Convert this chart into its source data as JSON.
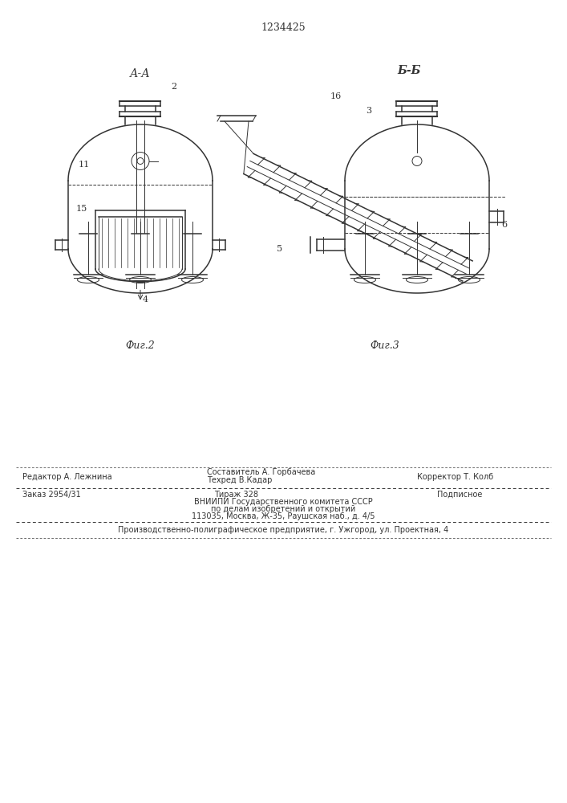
{
  "patent_number": "1234425",
  "fig2_label": "А-А",
  "fig3_label": "Б-Б",
  "fig2_caption": "Фиг.2",
  "fig3_caption": "Фиг.3",
  "line_color": "#333333",
  "footer_editor": "Редактор А. Лежнина",
  "footer_comp": "Составитель А. Горбачева",
  "footer_tech": "Техред В.Кадар",
  "footer_corr": "Корректор Т. Колб",
  "footer_order": "Заказ 2954/31",
  "footer_circ": "Тираж 328",
  "footer_sign": "Подписное",
  "footer_vnipi1": "ВНИИПИ Государственного комитета СССР",
  "footer_vnipi2": "по делам изобретений и открытий",
  "footer_vnipi3": "113035, Москва, Ж-35, Раушская наб., д. 4/5",
  "footer_prod": "Производственно-полиграфическое предприятие, г. Ужгород, ул. Проектная, 4"
}
